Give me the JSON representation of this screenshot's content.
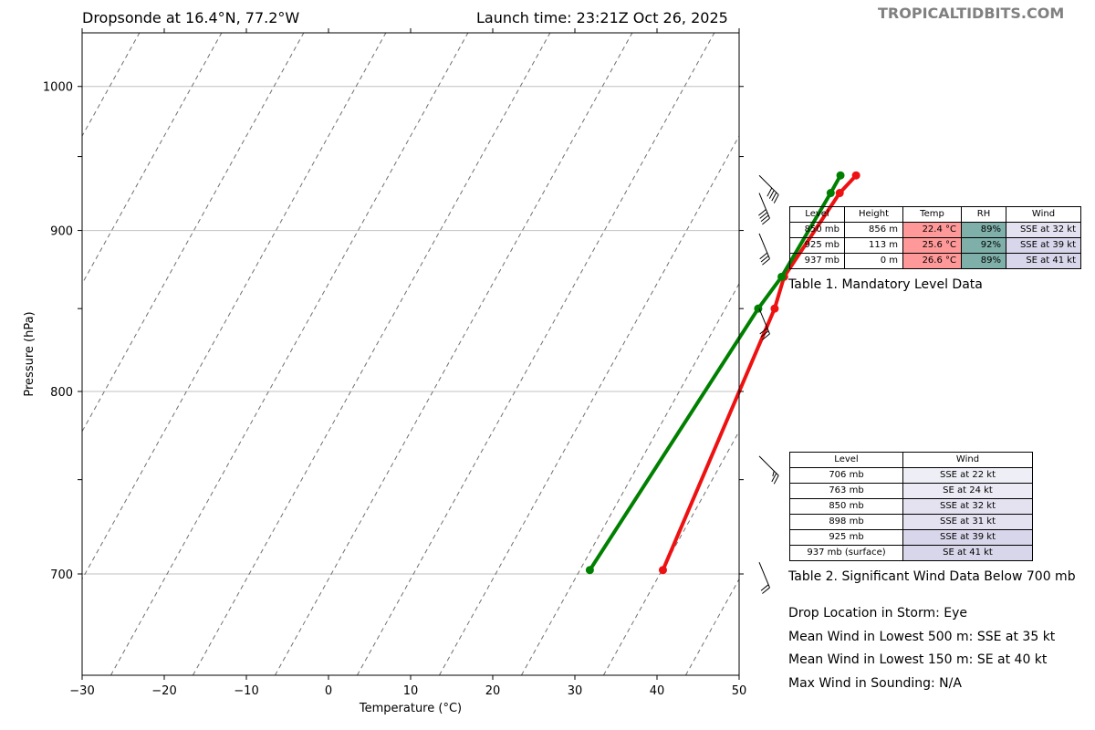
{
  "header": {
    "title_left": "Dropsonde at 16.4°N, 77.2°W",
    "title_right": "Launch time: 23:21Z Oct 26, 2025",
    "watermark": "TROPICALTIDBITS.COM"
  },
  "chart_data": {
    "type": "line",
    "xlabel": "Temperature (°C)",
    "ylabel": "Pressure (hPa)",
    "xlim": [
      -30,
      50
    ],
    "ylim": [
      1040,
      650
    ],
    "log_y": true,
    "skewed_isotherms": true,
    "grid": true,
    "x_ticks": [
      "−30",
      "−20",
      "−10",
      "0",
      "10",
      "20",
      "30",
      "40",
      "50"
    ],
    "y_ticks": [
      "700",
      "800",
      "900",
      "1000"
    ],
    "series": [
      {
        "color": "#ee1111",
        "points": [
          [
            33.6,
            702
          ],
          [
            29.5,
            850
          ],
          [
            28.5,
            870
          ],
          [
            29.6,
            925
          ],
          [
            30.4,
            937
          ]
        ]
      },
      {
        "color": "#008000",
        "points": [
          [
            24.7,
            702
          ],
          [
            27.5,
            850
          ],
          [
            28.2,
            870
          ],
          [
            28.5,
            925
          ],
          [
            28.5,
            937
          ]
        ]
      }
    ],
    "wind_barbs_kt": [
      {
        "p": 706,
        "dir": "SSE",
        "speed": 22
      },
      {
        "p": 763,
        "dir": "SE",
        "speed": 24
      },
      {
        "p": 850,
        "dir": "SSE",
        "speed": 32
      },
      {
        "p": 898,
        "dir": "SSE",
        "speed": 31
      },
      {
        "p": 925,
        "dir": "SSE",
        "speed": 39
      },
      {
        "p": 937,
        "dir": "SE",
        "speed": 41
      }
    ]
  },
  "table1": {
    "headers": [
      "Level",
      "Height",
      "Temp",
      "RH",
      "Wind"
    ],
    "rows": [
      [
        "850 mb",
        "856 m",
        "22.4 °C",
        "89%",
        "SSE at 32 kt"
      ],
      [
        "925 mb",
        "113 m",
        "25.6 °C",
        "92%",
        "SSE at 39 kt"
      ],
      [
        "937 mb",
        "0 m",
        "26.6 °C",
        "89%",
        "SE at 41 kt"
      ]
    ],
    "caption": "Table 1. Mandatory Level Data"
  },
  "table2": {
    "headers": [
      "Level",
      "Wind"
    ],
    "rows": [
      [
        "706 mb",
        "SSE at 22 kt"
      ],
      [
        "763 mb",
        "SE at 24 kt"
      ],
      [
        "850 mb",
        "SSE at 32 kt"
      ],
      [
        "898 mb",
        "SSE at 31 kt"
      ],
      [
        "925 mb",
        "SSE at 39 kt"
      ],
      [
        "937 mb (surface)",
        "SE at 41 kt"
      ]
    ],
    "caption": "Table 2. Significant Wind Data Below 700 mb"
  },
  "info": {
    "line1": "Drop Location in Storm: Eye",
    "line2": "Mean Wind in Lowest 500 m:  SSE at 35 kt",
    "line3": "Mean Wind in Lowest 150 m:  SE at 40 kt",
    "line4": "Max Wind in Sounding:  N/A"
  },
  "colors": {
    "temp_cell": "#ff9999",
    "rh_cell": "#7fafa9",
    "wind_cell_light": "#eeeef6",
    "wind_cell_mid": "#e4e2f0",
    "wind_cell_dark": "#d8d6ea"
  }
}
